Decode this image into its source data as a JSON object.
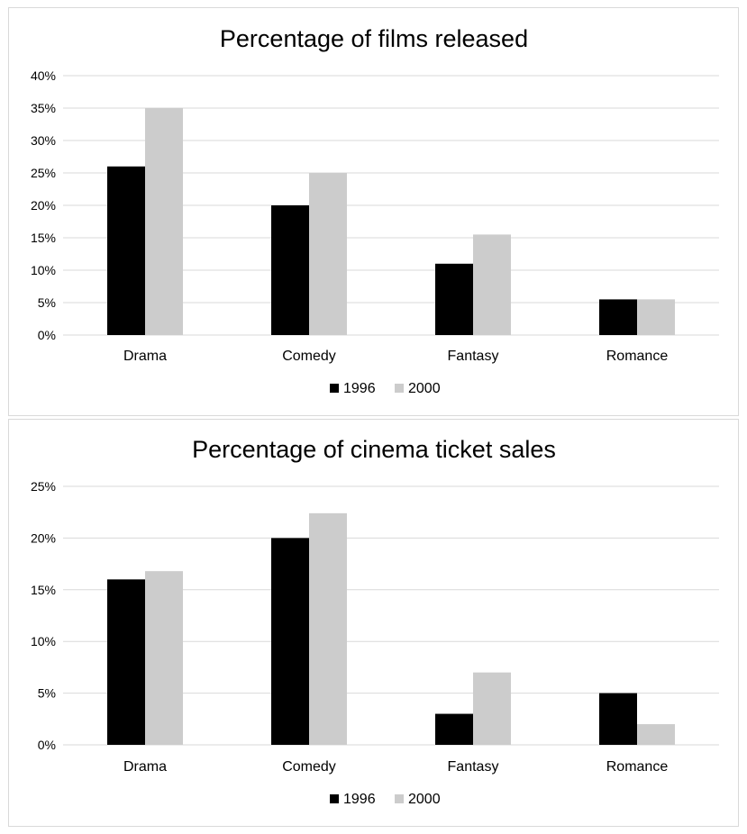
{
  "chart_data": [
    {
      "type": "bar",
      "title": "Percentage of films released",
      "categories": [
        "Drama",
        "Comedy",
        "Fantasy",
        "Romance"
      ],
      "series": [
        {
          "name": "1996",
          "color": "#000000",
          "values": [
            26,
            20,
            11,
            5.5
          ]
        },
        {
          "name": "2000",
          "color": "#cccccc",
          "values": [
            35,
            25,
            15.5,
            5.5
          ]
        }
      ],
      "yticks": [
        "0%",
        "5%",
        "10%",
        "15%",
        "20%",
        "25%",
        "30%",
        "35%",
        "40%"
      ],
      "ylim": [
        0,
        40
      ],
      "ystep": 5,
      "grid": true,
      "legend_position": "bottom"
    },
    {
      "type": "bar",
      "title": "Percentage of cinema ticket sales",
      "categories": [
        "Drama",
        "Comedy",
        "Fantasy",
        "Romance"
      ],
      "series": [
        {
          "name": "1996",
          "color": "#000000",
          "values": [
            16,
            20,
            3,
            5
          ]
        },
        {
          "name": "2000",
          "color": "#cccccc",
          "values": [
            16.8,
            22.4,
            7,
            2
          ]
        }
      ],
      "yticks": [
        "0%",
        "5%",
        "10%",
        "15%",
        "20%",
        "25%"
      ],
      "ylim": [
        0,
        25
      ],
      "ystep": 5,
      "grid": true,
      "legend_position": "bottom"
    }
  ]
}
